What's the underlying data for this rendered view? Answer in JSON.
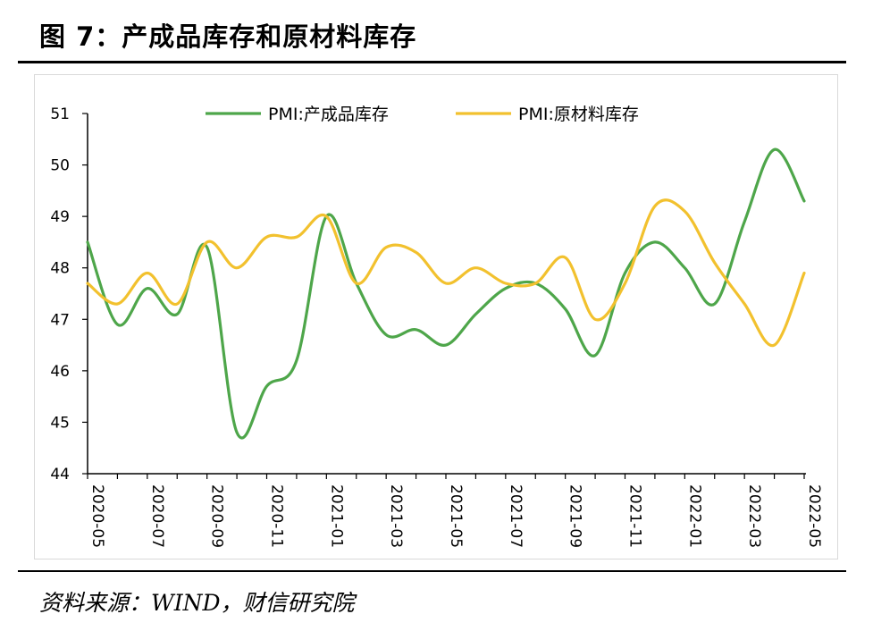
{
  "header": {
    "figure_title": "图 7：产成品库存和原材料库存"
  },
  "footer": {
    "source_text": "资料来源：WIND，财信研究院"
  },
  "chart_data": {
    "type": "line",
    "title": "图 7：产成品库存和原材料库存",
    "xlabel": "",
    "ylabel": "",
    "ylim": [
      44,
      51
    ],
    "yticks": [
      44,
      45,
      46,
      47,
      48,
      49,
      50,
      51
    ],
    "categories": [
      "2020-05",
      "2020-06",
      "2020-07",
      "2020-08",
      "2020-09",
      "2020-10",
      "2020-11",
      "2020-12",
      "2021-01",
      "2021-02",
      "2021-03",
      "2021-04",
      "2021-05",
      "2021-06",
      "2021-07",
      "2021-08",
      "2021-09",
      "2021-10",
      "2021-11",
      "2021-12",
      "2022-01",
      "2022-02",
      "2022-03",
      "2022-04",
      "2022-05"
    ],
    "tick_labels": [
      "2020-05",
      "2020-07",
      "2020-09",
      "2020-11",
      "2021-01",
      "2021-03",
      "2021-05",
      "2021-07",
      "2021-09",
      "2021-11",
      "2022-01",
      "2022-03",
      "2022-05"
    ],
    "legend_position": "top",
    "series": [
      {
        "name": "PMI:产成品库存",
        "color": "#4ea64a",
        "values": [
          48.5,
          46.9,
          47.6,
          47.1,
          48.4,
          44.8,
          45.7,
          46.2,
          49.0,
          47.7,
          46.7,
          46.8,
          46.5,
          47.1,
          47.6,
          47.7,
          47.2,
          46.3,
          47.9,
          48.5,
          48.0,
          47.3,
          48.9,
          50.3,
          49.3
        ]
      },
      {
        "name": "PMI:原材料库存",
        "color": "#f2c12e",
        "values": [
          47.7,
          47.3,
          47.9,
          47.3,
          48.5,
          48.0,
          48.6,
          48.6,
          49.0,
          47.7,
          48.4,
          48.3,
          47.7,
          48.0,
          47.7,
          47.7,
          48.2,
          47.0,
          47.7,
          49.2,
          49.1,
          48.1,
          47.3,
          46.5,
          47.9
        ]
      }
    ]
  }
}
